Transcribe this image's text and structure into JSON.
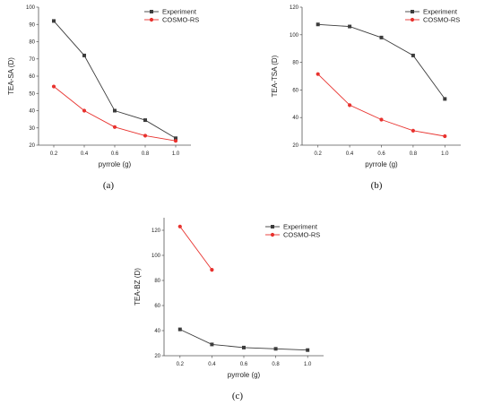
{
  "colors": {
    "experiment": "#3c3c3c",
    "cosmo": "#e8322e",
    "axis": "#555555"
  },
  "chart_data": [
    {
      "type": "line",
      "panel": "(a)",
      "xlabel": "pyrrole (g)",
      "ylabel": "TEA-SA (D)",
      "x_ticks": [
        "0.2",
        "0.4",
        "0.6",
        "0.8",
        "1.0"
      ],
      "y_ticks": [
        "20",
        "30",
        "40",
        "50",
        "60",
        "70",
        "80",
        "90",
        "100"
      ],
      "xlim": [
        0.1,
        1.1
      ],
      "ylim": [
        20,
        100
      ],
      "legend": "top-right",
      "series": [
        {
          "name": "Experiment",
          "color": "#3c3c3c",
          "marker": "square",
          "x": [
            0.2,
            0.4,
            0.6,
            0.8,
            1.0
          ],
          "y": [
            92,
            72,
            40,
            34.5,
            24
          ]
        },
        {
          "name": "COSMO-RS",
          "color": "#e8322e",
          "marker": "circle",
          "x": [
            0.2,
            0.4,
            0.6,
            0.8,
            1.0
          ],
          "y": [
            54,
            40,
            30.5,
            25.5,
            22.5
          ]
        }
      ]
    },
    {
      "type": "line",
      "panel": "(b)",
      "xlabel": "pyrrole (g)",
      "ylabel": "TEA-TSA (D)",
      "x_ticks": [
        "0.2",
        "0.4",
        "0.6",
        "0.8",
        "1.0"
      ],
      "y_ticks": [
        "20",
        "40",
        "60",
        "80",
        "100",
        "120"
      ],
      "xlim": [
        0.1,
        1.1
      ],
      "ylim": [
        20,
        120
      ],
      "legend": "top-right",
      "series": [
        {
          "name": "Experiment",
          "color": "#3c3c3c",
          "marker": "square",
          "x": [
            0.2,
            0.4,
            0.6,
            0.8,
            1.0
          ],
          "y": [
            107.5,
            106,
            98,
            85,
            53.5
          ]
        },
        {
          "name": "COSMO-RS",
          "color": "#e8322e",
          "marker": "circle",
          "x": [
            0.2,
            0.4,
            0.6,
            0.8,
            1.0
          ],
          "y": [
            71.5,
            49,
            38.5,
            30.5,
            26.5
          ]
        }
      ]
    },
    {
      "type": "line",
      "panel": "(c)",
      "xlabel": "pyrrole (g)",
      "ylabel": "TEA-BZ (D)",
      "x_ticks": [
        "0.2",
        "0.4",
        "0.6",
        "0.8",
        "1.0"
      ],
      "y_ticks": [
        "20",
        "40",
        "60",
        "80",
        "100",
        "120"
      ],
      "xlim": [
        0.1,
        1.1
      ],
      "ylim": [
        20,
        130
      ],
      "legend": "top-right",
      "series": [
        {
          "name": "Experiment",
          "color": "#3c3c3c",
          "marker": "square",
          "x": [
            0.2,
            0.4,
            0.6,
            0.8,
            1.0
          ],
          "y": [
            41,
            29,
            26.5,
            25.5,
            24.5
          ]
        },
        {
          "name": "COSMO-RS",
          "color": "#e8322e",
          "marker": "circle",
          "x": [
            0.2,
            0.4
          ],
          "y": [
            123,
            88.5
          ]
        }
      ]
    }
  ]
}
